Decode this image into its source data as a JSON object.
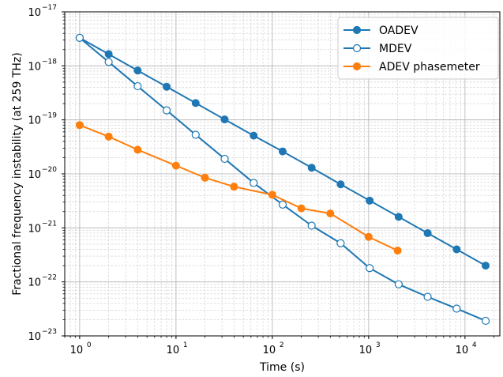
{
  "chart_data": {
    "type": "line",
    "xlabel": "Time (s)",
    "ylabel": "Fractional frequency instability (at 259 THz)",
    "xscale": "log",
    "yscale": "log",
    "xlim": [
      0.7,
      23000
    ],
    "ylim": [
      1e-23,
      1e-17
    ],
    "x_ticks": [
      {
        "label": "10",
        "sup": "0"
      },
      {
        "label": "10",
        "sup": "1"
      },
      {
        "label": "10",
        "sup": "2"
      },
      {
        "label": "10",
        "sup": "3"
      },
      {
        "label": "10",
        "sup": "4"
      }
    ],
    "y_ticks": [
      {
        "label": "10",
        "sup": "−23"
      },
      {
        "label": "10",
        "sup": "−22"
      },
      {
        "label": "10",
        "sup": "−21"
      },
      {
        "label": "10",
        "sup": "−20"
      },
      {
        "label": "10",
        "sup": "−19"
      },
      {
        "label": "10",
        "sup": "−18"
      },
      {
        "label": "10",
        "sup": "−17"
      }
    ],
    "grid": true,
    "legend_position": "top-right",
    "series": [
      {
        "name": "OADEV",
        "color": "#1f77b4",
        "marker": "filled-circle",
        "x": [
          1,
          2,
          4,
          8,
          16,
          32,
          64,
          128,
          256,
          512,
          1024,
          2048,
          4096,
          8192,
          16384
        ],
        "y": [
          3.3e-18,
          1.65e-18,
          8.2e-19,
          4.1e-19,
          2.05e-19,
          1.02e-19,
          5.1e-20,
          2.6e-20,
          1.3e-20,
          6.4e-21,
          3.2e-21,
          1.6e-21,
          8e-22,
          4e-22,
          2e-22
        ]
      },
      {
        "name": "MDEV",
        "color": "#1f77b4",
        "marker": "open-circle",
        "x": [
          1,
          2,
          4,
          8,
          16,
          32,
          64,
          128,
          256,
          512,
          1024,
          2048,
          4096,
          8192,
          16384
        ],
        "y": [
          3.3e-18,
          1.18e-18,
          4.2e-19,
          1.5e-19,
          5.3e-20,
          1.9e-20,
          6.8e-21,
          2.7e-21,
          1.1e-21,
          5.2e-22,
          1.8e-22,
          9e-23,
          5.3e-23,
          3.2e-23,
          1.9e-23
        ]
      },
      {
        "name": "ADEV phasemeter",
        "color": "#ff7f0e",
        "marker": "filled-circle",
        "x": [
          1,
          2,
          4,
          10,
          20,
          40,
          100,
          200,
          400,
          1000,
          2000
        ],
        "y": [
          8e-20,
          4.9e-20,
          2.8e-20,
          1.42e-20,
          8.5e-21,
          5.8e-21,
          4.1e-21,
          2.3e-21,
          1.85e-21,
          6.8e-22,
          3.8e-22
        ]
      }
    ]
  }
}
